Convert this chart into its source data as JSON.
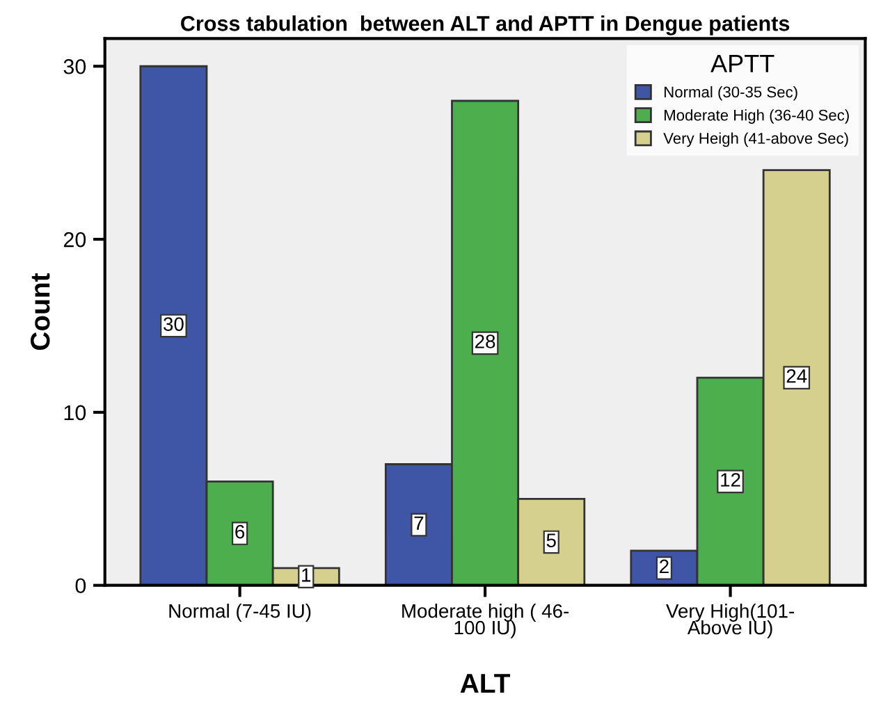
{
  "chart_data": {
    "type": "bar",
    "title": "Cross tabulation  between ALT and APTT in Dengue patients",
    "xlabel": "ALT",
    "ylabel": "Count",
    "legend_title": "APTT",
    "categories": [
      "Normal (7-45 IU)",
      "Moderate high ( 46-\n100 IU)",
      "Very High(101-\nAbove IU)"
    ],
    "series": [
      {
        "name": "Normal (30-35 Sec)",
        "color": "#3f55a5",
        "values": [
          30,
          7,
          2
        ]
      },
      {
        "name": "Moderate High (36-40 Sec)",
        "color": "#4cae4c",
        "values": [
          6,
          28,
          12
        ]
      },
      {
        "name": "Very Heigh (41-above Sec)",
        "color": "#d6d08e",
        "values": [
          1,
          5,
          24
        ]
      }
    ],
    "ylim": [
      0,
      31.6
    ],
    "yticks": [
      0,
      10,
      20,
      30
    ],
    "grid": false,
    "legend": "top right",
    "data_labels": true
  }
}
